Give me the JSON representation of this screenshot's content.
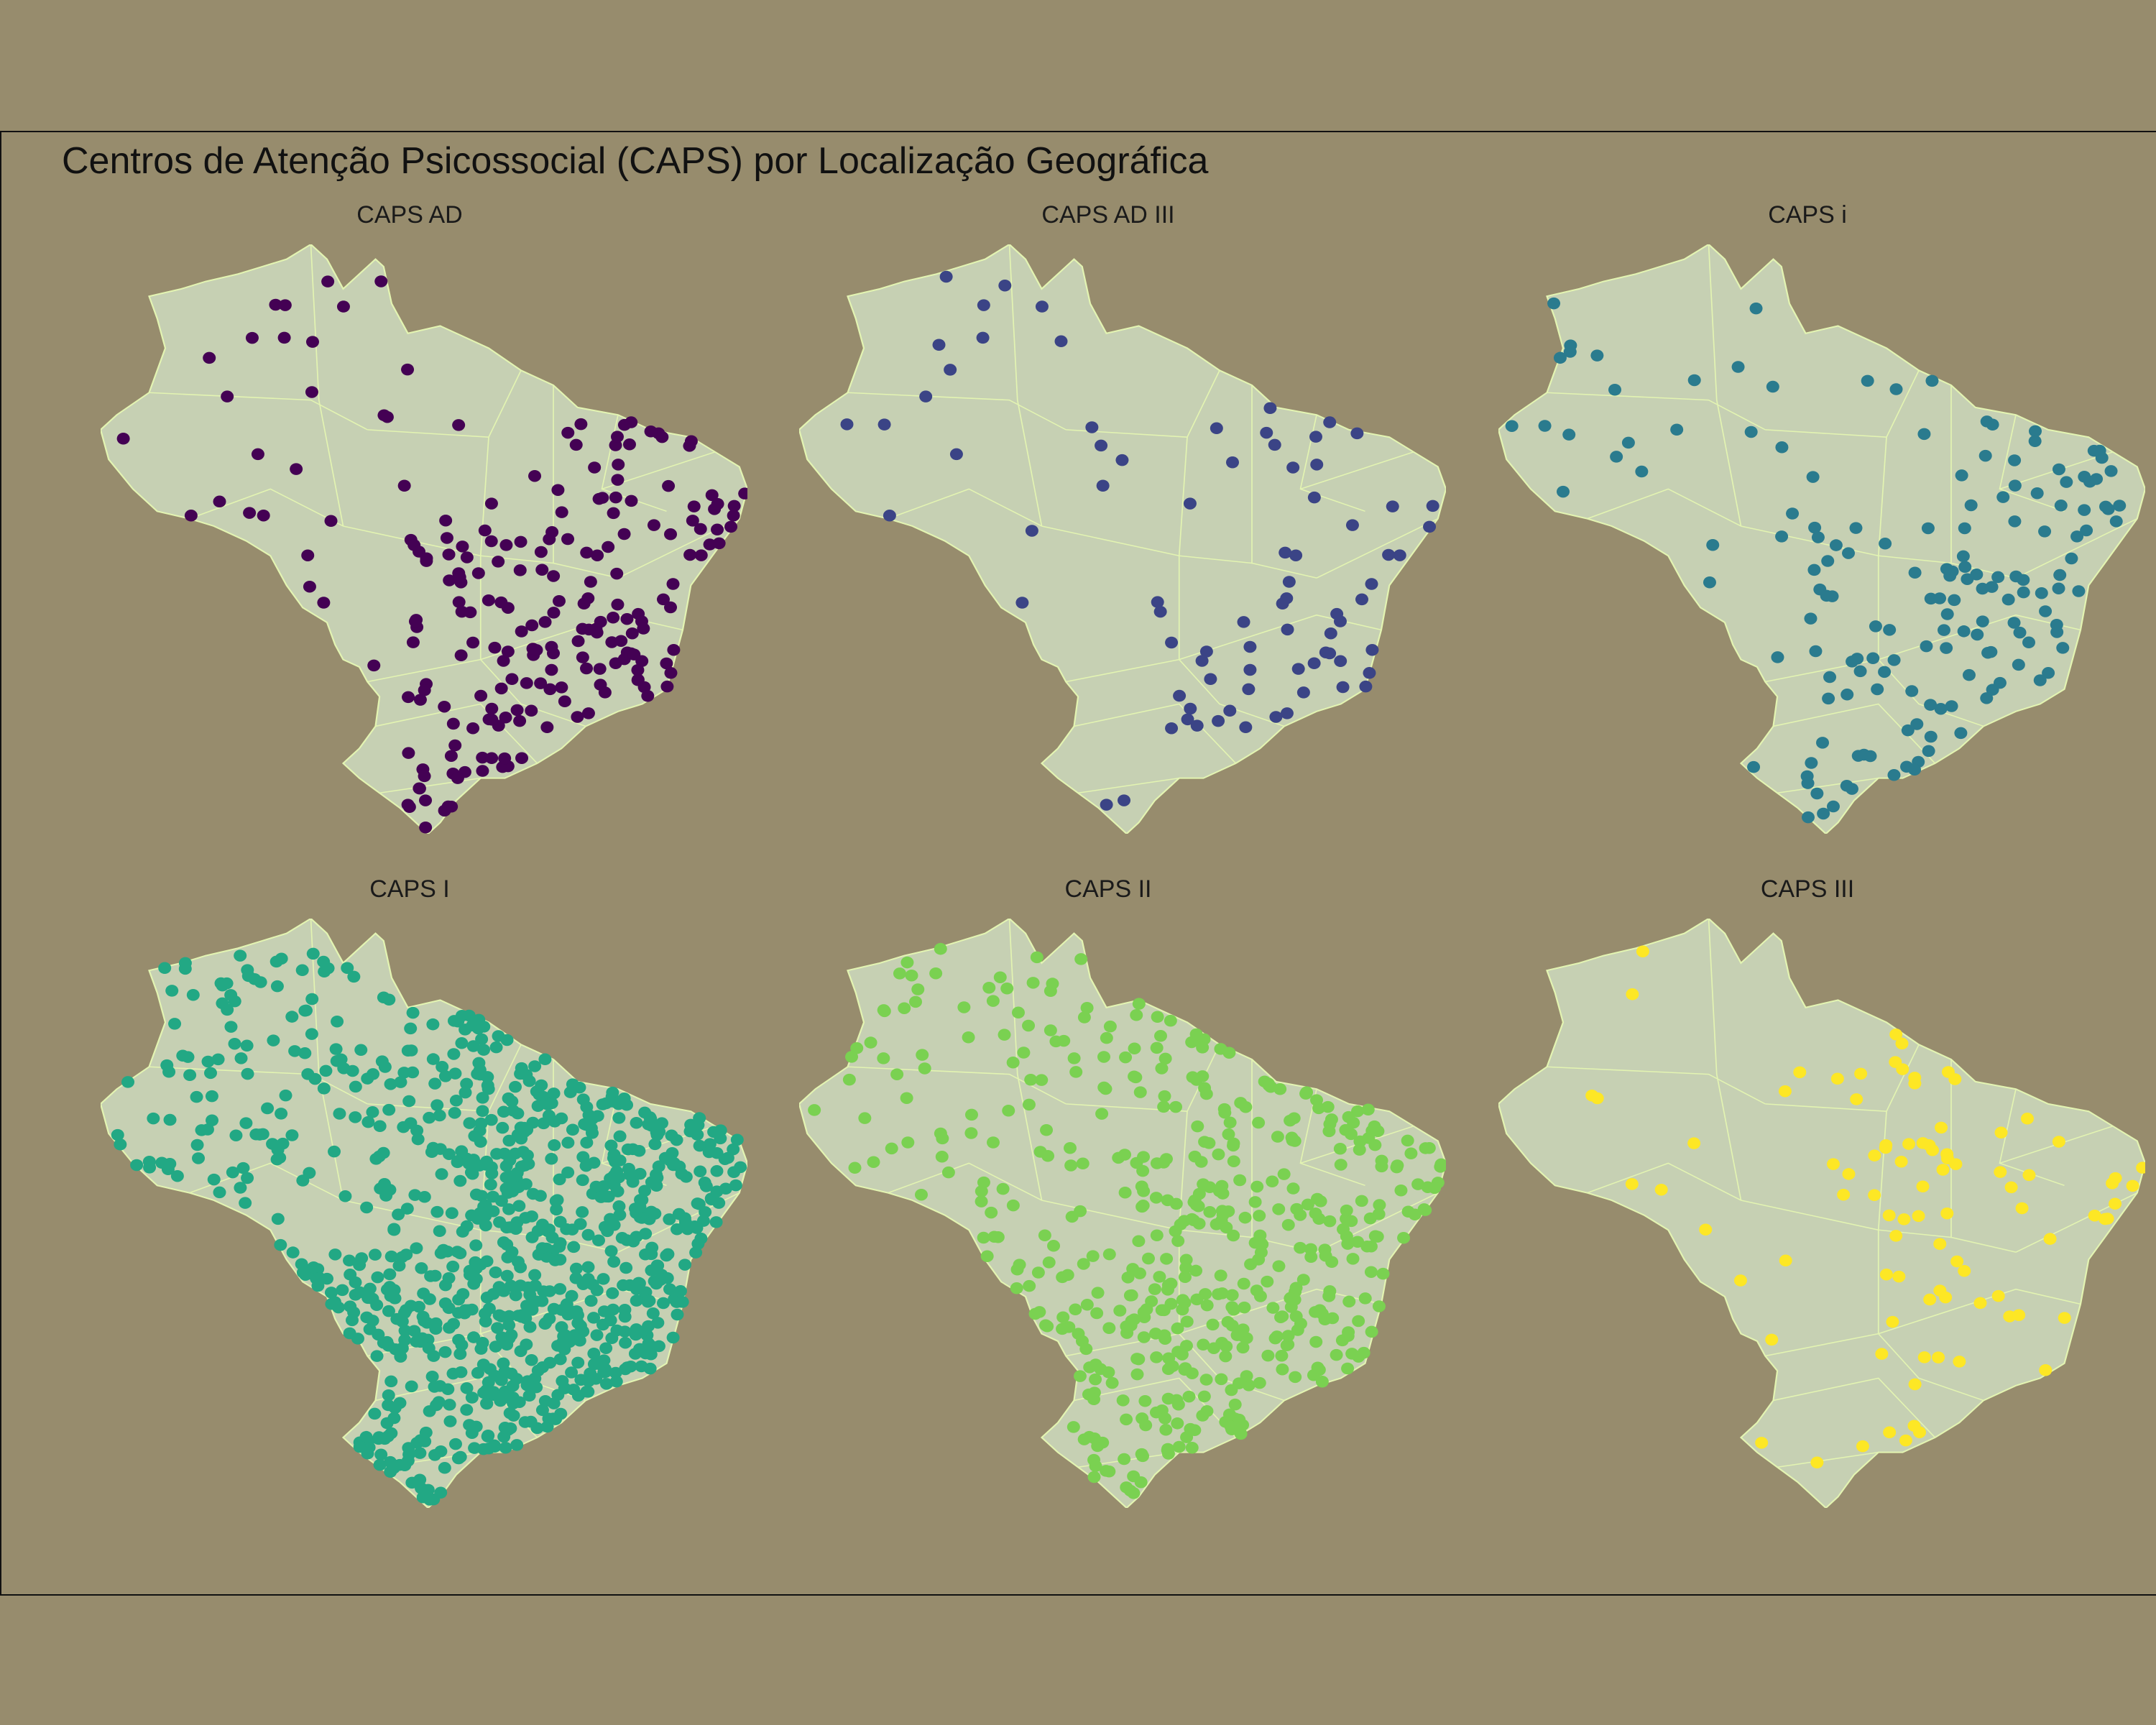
{
  "title": "Centros de Atenção Psicossocial (CAPS) por Localização Geográfica",
  "colors": {
    "background": "#978c6d",
    "land": "#c6d0b3",
    "borders": "#e3f4b2"
  },
  "panels": [
    {
      "label": "CAPS AD",
      "color": "#440154",
      "density": 220,
      "bias": "south-east"
    },
    {
      "label": "CAPS AD III",
      "color": "#3b4486",
      "density": 80,
      "bias": "mixed"
    },
    {
      "label": "CAPS i",
      "color": "#2a7b8e",
      "density": 160,
      "bias": "south-east"
    },
    {
      "label": "CAPS I",
      "color": "#22a884",
      "density": 900,
      "bias": "east"
    },
    {
      "label": "CAPS II",
      "color": "#7ad151",
      "density": 500,
      "bias": "east"
    },
    {
      "label": "CAPS III",
      "color": "#fde725",
      "density": 90,
      "bias": "mixed"
    }
  ]
}
